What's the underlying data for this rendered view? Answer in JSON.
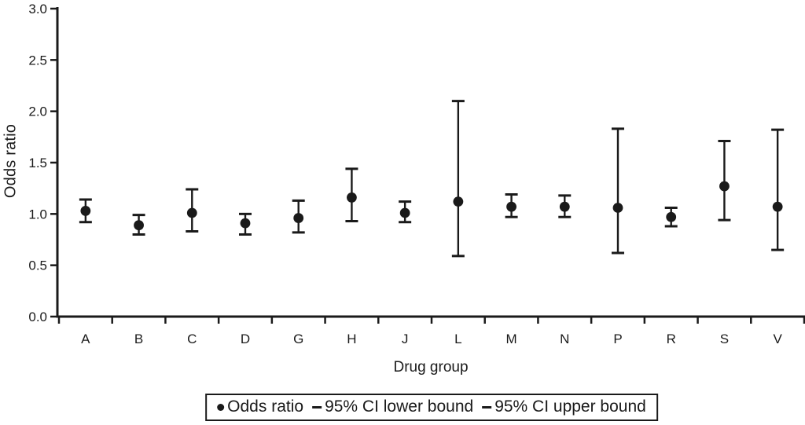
{
  "colors": {
    "ink": "#1a1a1a",
    "background": "#ffffff"
  },
  "chart_data": {
    "type": "scatter",
    "subtype": "point-with-errorbars",
    "title": "",
    "xlabel": "Drug group",
    "ylabel": "Odds ratio",
    "ylim": [
      0.0,
      3.0
    ],
    "yticks": [
      0.0,
      0.5,
      1.0,
      1.5,
      2.0,
      2.5,
      3.0
    ],
    "ytick_labels": [
      "0.0",
      "0.5",
      "1.0",
      "1.5",
      "2.0",
      "2.5",
      "3.0"
    ],
    "grid": false,
    "legend_position": "bottom",
    "categories": [
      "A",
      "B",
      "C",
      "D",
      "G",
      "H",
      "J",
      "L",
      "M",
      "N",
      "P",
      "R",
      "S",
      "V"
    ],
    "series": [
      {
        "name": "Odds ratio",
        "values": [
          1.03,
          0.89,
          1.01,
          0.91,
          0.96,
          1.16,
          1.01,
          1.12,
          1.07,
          1.07,
          1.06,
          0.97,
          1.27,
          1.07
        ]
      },
      {
        "name": "95% CI lower bound",
        "values": [
          0.92,
          0.8,
          0.83,
          0.8,
          0.82,
          0.93,
          0.92,
          0.59,
          0.97,
          0.97,
          0.62,
          0.88,
          0.94,
          0.65
        ]
      },
      {
        "name": "95% CI upper bound",
        "values": [
          1.14,
          0.99,
          1.24,
          1.0,
          1.13,
          1.44,
          1.12,
          2.1,
          1.19,
          1.18,
          1.83,
          1.06,
          1.71,
          1.82
        ]
      }
    ]
  },
  "legend": {
    "items": [
      {
        "marker": "dot",
        "label": "Odds ratio"
      },
      {
        "marker": "dash",
        "label": "95% CI lower bound"
      },
      {
        "marker": "dash",
        "label": "95% CI upper bound"
      }
    ]
  }
}
